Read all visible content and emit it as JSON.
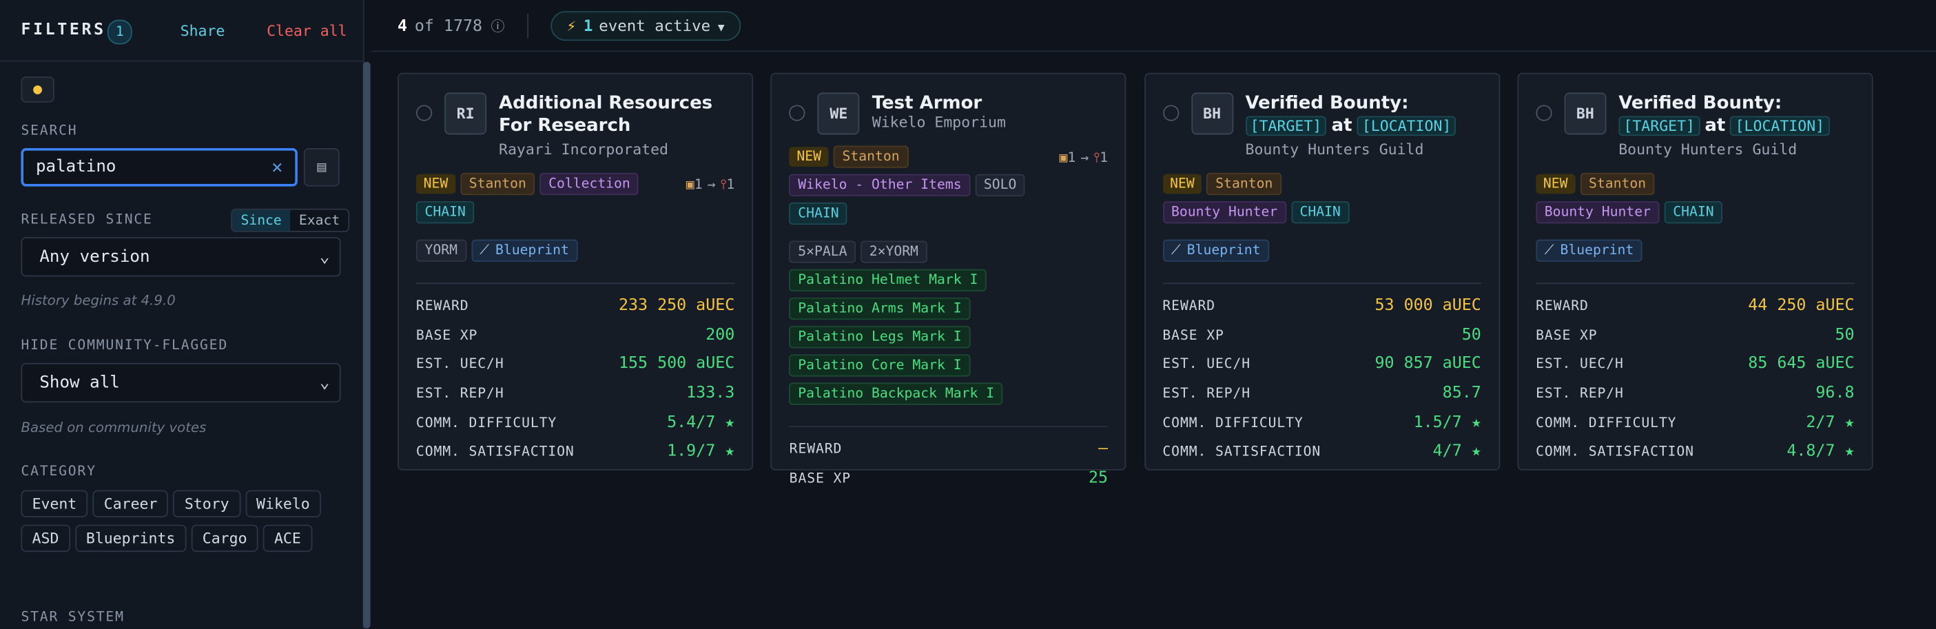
{
  "sidebar": {
    "title": "FILTERS",
    "count": "1",
    "share": "Share",
    "clear": "Clear all",
    "search_label": "SEARCH",
    "search_value": "palatino",
    "released_label": "RELEASED SINCE",
    "toggle": [
      "Since",
      "Exact"
    ],
    "released_select": "Any version",
    "history_note": "History begins at 4.9.0",
    "hide_label": "HIDE COMMUNITY-FLAGGED",
    "hide_select": "Show all",
    "community_note": "Based on community votes",
    "category_label": "CATEGORY",
    "categories": [
      "Event",
      "Career",
      "Story",
      "Wikelo",
      "ASD",
      "Blueprints",
      "Cargo",
      "ACE"
    ],
    "star_system_label": "STAR SYSTEM"
  },
  "topbar": {
    "count": "4",
    "of": "of 1778",
    "events_count": "1",
    "events_text": "event active"
  },
  "cards": [
    {
      "initials": "RI",
      "title": [
        {
          "text": "Additional Resources For Research"
        }
      ],
      "org": "Rayari Incorporated",
      "tags": [
        {
          "text": "NEW",
          "kind": "new"
        },
        {
          "text": "Stanton",
          "kind": "system"
        },
        {
          "text": "Collection",
          "kind": "purple"
        },
        {
          "text": "CHAIN",
          "kind": "teal"
        }
      ],
      "flow": [
        "1",
        "1"
      ],
      "extras": [
        {
          "text": "YORM",
          "kind": "gray"
        },
        {
          "text": "Blueprint",
          "kind": "blue"
        }
      ],
      "items": [],
      "stats": [
        {
          "label": "REWARD",
          "value": "233 250 aUEC",
          "kind": "reward"
        },
        {
          "label": "BASE XP",
          "value": "200"
        },
        {
          "label": "EST. UEC/H",
          "value": "155 500 aUEC"
        },
        {
          "label": "EST. REP/H",
          "value": "133.3"
        },
        {
          "label": "COMM. DIFFICULTY",
          "value": "5.4/7 ★"
        },
        {
          "label": "COMM. SATISFACTION",
          "value": "1.9/7 ★"
        }
      ]
    },
    {
      "initials": "WE",
      "title": [
        {
          "text": "Test Armor"
        }
      ],
      "org": "Wikelo Emporium",
      "tags": [
        {
          "text": "NEW",
          "kind": "new"
        },
        {
          "text": "Stanton",
          "kind": "system"
        },
        {
          "text": "Wikelo - Other Items",
          "kind": "purple"
        },
        {
          "text": "SOLO",
          "kind": "gray"
        },
        {
          "text": "CHAIN",
          "kind": "teal"
        }
      ],
      "flow": [
        "1",
        "1"
      ],
      "extras": [
        {
          "text": "5×PALA",
          "kind": "gray"
        },
        {
          "text": "2×YORM",
          "kind": "gray"
        }
      ],
      "items": [
        "Palatino Helmet Mark I",
        "Palatino Arms Mark I",
        "Palatino Legs Mark I",
        "Palatino Core Mark I",
        "Palatino Backpack Mark I"
      ],
      "stats": [
        {
          "label": "REWARD",
          "value": "—",
          "kind": "reward"
        },
        {
          "label": "BASE XP",
          "value": "25"
        }
      ]
    },
    {
      "initials": "BH",
      "title": [
        {
          "text": "Verified Bounty:"
        },
        {
          "text": "[TARGET]",
          "code": true
        },
        {
          "text": "at"
        },
        {
          "text": "[LOCATION]",
          "code": true
        }
      ],
      "org": "Bounty Hunters Guild",
      "tags": [
        {
          "text": "NEW",
          "kind": "new"
        },
        {
          "text": "Stanton",
          "kind": "system"
        },
        {
          "text": "Bounty Hunter",
          "kind": "purple"
        },
        {
          "text": "CHAIN",
          "kind": "teal"
        }
      ],
      "flow": [],
      "extras": [
        {
          "text": "Blueprint",
          "kind": "blue"
        }
      ],
      "items": [],
      "stats": [
        {
          "label": "REWARD",
          "value": "53 000 aUEC",
          "kind": "reward"
        },
        {
          "label": "BASE XP",
          "value": "50"
        },
        {
          "label": "EST. UEC/H",
          "value": "90 857 aUEC"
        },
        {
          "label": "EST. REP/H",
          "value": "85.7"
        },
        {
          "label": "COMM. DIFFICULTY",
          "value": "1.5/7 ★"
        },
        {
          "label": "COMM. SATISFACTION",
          "value": "4/7 ★"
        }
      ]
    },
    {
      "initials": "BH",
      "title": [
        {
          "text": "Verified Bounty:"
        },
        {
          "text": "[TARGET]",
          "code": true
        },
        {
          "text": "at"
        },
        {
          "text": "[LOCATION]",
          "code": true
        }
      ],
      "org": "Bounty Hunters Guild",
      "tags": [
        {
          "text": "NEW",
          "kind": "new"
        },
        {
          "text": "Stanton",
          "kind": "system"
        },
        {
          "text": "Bounty Hunter",
          "kind": "purple"
        },
        {
          "text": "CHAIN",
          "kind": "teal"
        }
      ],
      "flow": [],
      "extras": [
        {
          "text": "Blueprint",
          "kind": "blue"
        }
      ],
      "items": [],
      "stats": [
        {
          "label": "REWARD",
          "value": "44 250 aUEC",
          "kind": "reward"
        },
        {
          "label": "BASE XP",
          "value": "50"
        },
        {
          "label": "EST. UEC/H",
          "value": "85 645 aUEC"
        },
        {
          "label": "EST. REP/H",
          "value": "96.8"
        },
        {
          "label": "COMM. DIFFICULTY",
          "value": "2/7 ★"
        },
        {
          "label": "COMM. SATISFACTION",
          "value": "4.8/7 ★"
        }
      ]
    }
  ]
}
